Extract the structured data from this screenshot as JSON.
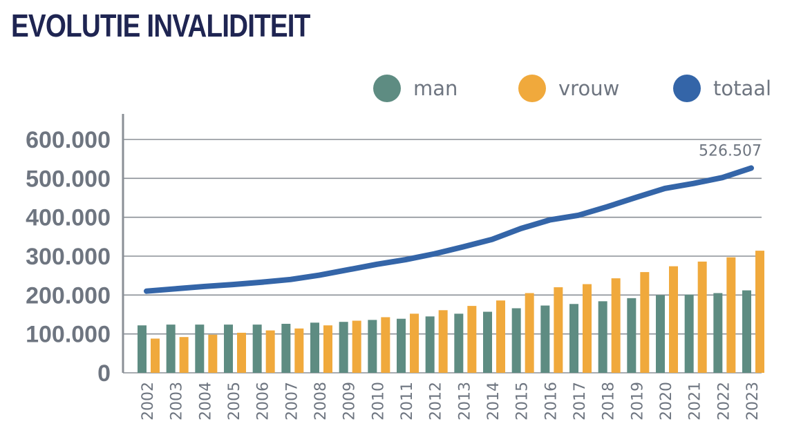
{
  "colors": {
    "man": "#5e8c82",
    "vrouw": "#f0a93c",
    "totaal": "#3465a8",
    "title": "#1f2552",
    "axis_text": "#6e7580",
    "grid": "#8a8f96"
  },
  "chart_data": {
    "type": "bar",
    "title": "EVOLUTIE INVALIDITEIT",
    "categories": [
      "2002",
      "2003",
      "2004",
      "2005",
      "2006",
      "2007",
      "2008",
      "2009",
      "2010",
      "2011",
      "2012",
      "2013",
      "2014",
      "2015",
      "2016",
      "2017",
      "2018",
      "2019",
      "2020",
      "2021",
      "2022",
      "2023"
    ],
    "series": [
      {
        "name": "man",
        "type": "bar",
        "color": "#5e8c82",
        "values": [
          122000,
          124000,
          124000,
          124000,
          124000,
          126000,
          129000,
          131000,
          136000,
          139000,
          145000,
          152000,
          157000,
          166000,
          173000,
          177000,
          184000,
          192000,
          200000,
          201000,
          205000,
          212000
        ]
      },
      {
        "name": "vrouw",
        "type": "bar",
        "color": "#f0a93c",
        "values": [
          88000,
          92000,
          98000,
          103000,
          109000,
          114000,
          122000,
          134000,
          143000,
          152000,
          161000,
          172000,
          186000,
          205000,
          220000,
          228000,
          243000,
          259000,
          274000,
          286000,
          297000,
          314000
        ]
      },
      {
        "name": "totaal",
        "type": "line",
        "color": "#3465a8",
        "values": [
          210000,
          216000,
          222000,
          227000,
          233000,
          240000,
          251000,
          265000,
          279000,
          291000,
          306000,
          324000,
          343000,
          371000,
          393000,
          405000,
          427000,
          451000,
          474000,
          487000,
          502000,
          526507
        ]
      }
    ],
    "y_ticks": [
      "0",
      "100.000",
      "200.000",
      "300.000",
      "400.000",
      "500.000",
      "600.000"
    ],
    "ylim": [
      0,
      600000
    ],
    "grid": true,
    "legend": {
      "placement": "top-right",
      "items": [
        "man",
        "vrouw",
        "totaal"
      ]
    },
    "annotation": {
      "text": "526.507",
      "category": "2023",
      "series": "totaal"
    },
    "xlabel": "",
    "ylabel": ""
  }
}
